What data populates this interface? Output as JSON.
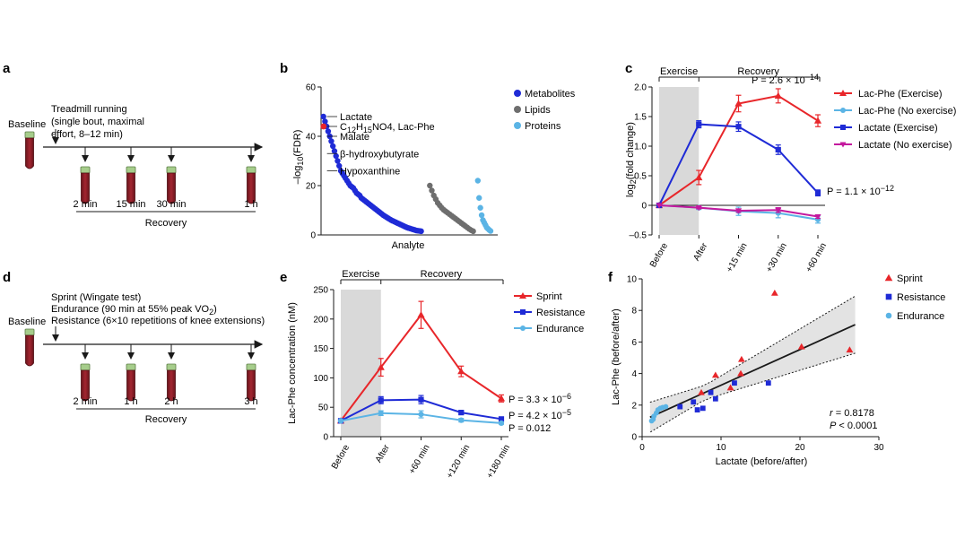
{
  "colors": {
    "red": "#e8262a",
    "blue": "#1f2bd6",
    "light_blue": "#5bb4e5",
    "magenta": "#c4199e",
    "gray": "#6e6e6e",
    "light_gray": "#d9d9d9",
    "tube_red": "#8c1d24",
    "cap_green": "#a6cd8b"
  },
  "panels": {
    "a": {
      "label": "a",
      "baseline": "Baseline",
      "protocol_lines": [
        "Treadmill running",
        "(single bout, maximal",
        "effort, 8–12 min)"
      ],
      "timepoints": [
        "2 min",
        "15 min",
        "30 min",
        "1 h"
      ],
      "phase": "Recovery"
    },
    "b": {
      "label": "b"
    },
    "c": {
      "label": "c"
    },
    "d": {
      "label": "d",
      "baseline": "Baseline",
      "protocol_lines": [
        {
          "pre": "Sprint (Wingate test)",
          "sub": "",
          "post": ""
        },
        {
          "pre": "Endurance (90 min at 55% peak VO",
          "sub": "2",
          "post": ")"
        },
        {
          "pre": "Resistance (6×10 repetitions of knee extensions)",
          "sub": "",
          "post": ""
        }
      ],
      "timepoints": [
        "2 min",
        "1 h",
        "2 h",
        "3 h"
      ],
      "phase": "Recovery"
    },
    "e": {
      "label": "e"
    },
    "f": {
      "label": "f"
    }
  },
  "chart_data": [
    {
      "id": "b",
      "type": "scatter",
      "title": "",
      "xlabel": "Analyte",
      "ylabel_parts": {
        "pre": "–log",
        "sub": "10",
        "post": "(FDR)"
      },
      "ylim": [
        0,
        60
      ],
      "yticks": [
        0,
        20,
        40,
        60
      ],
      "series": [
        {
          "name": "Metabolites",
          "color_key": "blue",
          "x_start": 1,
          "x_end": 170,
          "ranked_values": [
            48,
            46,
            44,
            42,
            40,
            38,
            36,
            34,
            32,
            30,
            28,
            26,
            25,
            24,
            23,
            22,
            21,
            20,
            19.5,
            19,
            18,
            17,
            16.5,
            16,
            15,
            14.5,
            14,
            13.5,
            13,
            12.5,
            12,
            11.5,
            11,
            10.5,
            10,
            9.5,
            9,
            8.5,
            8,
            7.6,
            7.2,
            6.8,
            6.4,
            6,
            5.7,
            5.4,
            5.1,
            4.8,
            4.5,
            4.2,
            3.9,
            3.6,
            3.3,
            3,
            2.8,
            2.6,
            2.4,
            2.2,
            2,
            1.8,
            1.7,
            1.6,
            1.5
          ]
        },
        {
          "name": "Lipids",
          "color_key": "gray",
          "x_start": 185,
          "x_end": 260,
          "ranked_values": [
            20,
            18,
            16,
            14.5,
            13,
            12,
            11,
            10.2,
            9.6,
            9,
            8.4,
            7.8,
            7.2,
            6.6,
            6,
            5.4,
            4.8,
            4.2,
            3.6,
            3,
            2.4,
            1.9,
            1.5
          ]
        },
        {
          "name": "Proteins",
          "color_key": "light_blue",
          "x_start": 268,
          "x_end": 290,
          "ranked_values": [
            22,
            15,
            11,
            8,
            6,
            5,
            4,
            3,
            2.5,
            2,
            1.6
          ]
        }
      ],
      "annotations": [
        {
          "label_parts": {
            "pre": "Lactate",
            "s1": "",
            "mid": "",
            "s2": "",
            "post": ""
          },
          "value": 48
        },
        {
          "label_parts": {
            "pre": "C",
            "s1": "12",
            "mid": "H",
            "s2": "15",
            "post": "NO4, Lac-Phe"
          },
          "value": 44
        },
        {
          "label_parts": {
            "pre": "Malate",
            "s1": "",
            "mid": "",
            "s2": "",
            "post": ""
          },
          "value": 40
        },
        {
          "label_parts": {
            "pre": "β-hydroxybutyrate",
            "s1": "",
            "mid": "",
            "s2": "",
            "post": ""
          },
          "value": 33
        },
        {
          "label_parts": {
            "pre": "Hypoxanthine",
            "s1": "",
            "mid": "",
            "s2": "",
            "post": ""
          },
          "value": 26
        }
      ],
      "legend": [
        "Metabolites",
        "Lipids",
        "Proteins"
      ],
      "legend_position": "top-right"
    },
    {
      "id": "c",
      "type": "line",
      "xlabel": "",
      "ylabel_parts": {
        "pre": "log",
        "sub": "2",
        "post": "(fold change)"
      },
      "categories": [
        "Before",
        "After",
        "+15 min",
        "+30 min",
        "+60 min"
      ],
      "ylim": [
        -0.5,
        2.0
      ],
      "yticks": [
        -0.5,
        0,
        0.5,
        1.0,
        1.5,
        2.0
      ],
      "ytick_labels": [
        "–0.5",
        "0",
        "0.5",
        "1.0",
        "1.5",
        "2.0"
      ],
      "shaded_region": {
        "from": "Before",
        "to": "After"
      },
      "phase_labels": [
        "Exercise",
        "Recovery"
      ],
      "series": [
        {
          "name": "Lac-Phe (Exercise)",
          "color_key": "red",
          "marker": "triangle",
          "values": [
            0,
            0.47,
            1.72,
            1.85,
            1.43
          ],
          "errors": [
            0,
            0.12,
            0.14,
            0.12,
            0.1
          ]
        },
        {
          "name": "Lac-Phe (No exercise)",
          "color_key": "light_blue",
          "marker": "circle",
          "values": [
            0,
            -0.04,
            -0.1,
            -0.13,
            -0.24
          ],
          "errors": [
            0,
            0.03,
            0.07,
            0.08,
            0.06
          ]
        },
        {
          "name": "Lactate (Exercise)",
          "color_key": "blue",
          "marker": "square",
          "values": [
            0,
            1.37,
            1.33,
            0.94,
            0.21
          ],
          "errors": [
            0,
            0.06,
            0.08,
            0.08,
            0.05
          ]
        },
        {
          "name": "Lactate (No exercise)",
          "color_key": "magenta",
          "marker": "triangle-down",
          "values": [
            0,
            -0.04,
            -0.09,
            -0.08,
            -0.19
          ],
          "errors": [
            0,
            0.02,
            0.03,
            0.04,
            0.03
          ]
        }
      ],
      "p_values": [
        {
          "pre": "P = 2.6 × 10",
          "sup": "−14"
        },
        {
          "pre": "P = 1.1 × 10",
          "sup": "−12"
        }
      ],
      "legend_position": "right"
    },
    {
      "id": "e",
      "type": "line",
      "xlabel": "",
      "ylabel": "Lac-Phe concentration (nM)",
      "categories": [
        "Before",
        "After",
        "+60 min",
        "+120 min",
        "+180 min"
      ],
      "ylim": [
        0,
        250
      ],
      "yticks": [
        0,
        50,
        100,
        150,
        200,
        250
      ],
      "shaded_region": {
        "from": "Before",
        "to": "After"
      },
      "phase_labels": [
        "Exercise",
        "Recovery"
      ],
      "series": [
        {
          "name": "Sprint",
          "color_key": "red",
          "marker": "triangle",
          "values": [
            27,
            118,
            207,
            111,
            65
          ],
          "errors": [
            0,
            15,
            23,
            9,
            6
          ]
        },
        {
          "name": "Resistance",
          "color_key": "blue",
          "marker": "square",
          "values": [
            27,
            62,
            63,
            41,
            30
          ],
          "errors": [
            0,
            6,
            7,
            3,
            3
          ]
        },
        {
          "name": "Endurance",
          "color_key": "light_blue",
          "marker": "circle",
          "values": [
            27,
            40,
            38,
            28,
            23
          ],
          "errors": [
            0,
            4,
            6,
            3,
            2
          ]
        }
      ],
      "p_values": [
        {
          "pre": "P = 3.3 × 10",
          "sup": "−6"
        },
        {
          "pre": "P = 4.2 × 10",
          "sup": "−5"
        },
        {
          "pre": "P = 0.012",
          "sup": ""
        }
      ],
      "legend_position": "top-right"
    },
    {
      "id": "f",
      "type": "scatter",
      "xlabel": "Lactate (before/after)",
      "ylabel": "Lac-Phe (before/after)",
      "xlim": [
        0,
        30
      ],
      "ylim": [
        0,
        10
      ],
      "xticks": [
        0,
        10,
        20,
        30
      ],
      "yticks": [
        0,
        2,
        4,
        6,
        8,
        10
      ],
      "series": [
        {
          "name": "Sprint",
          "color_key": "red",
          "marker": "triangle",
          "points": [
            [
              7.5,
              2.8
            ],
            [
              9.3,
              3.9
            ],
            [
              11.2,
              3.1
            ],
            [
              12.5,
              4.0
            ],
            [
              12.6,
              4.9
            ],
            [
              16.8,
              9.1
            ],
            [
              20.2,
              5.7
            ],
            [
              26.3,
              5.5
            ]
          ]
        },
        {
          "name": "Resistance",
          "color_key": "blue",
          "marker": "square",
          "points": [
            [
              4.8,
              1.9
            ],
            [
              6.5,
              2.2
            ],
            [
              7.0,
              1.7
            ],
            [
              7.7,
              1.8
            ],
            [
              8.7,
              2.8
            ],
            [
              9.3,
              2.4
            ],
            [
              11.7,
              3.4
            ],
            [
              16.0,
              3.4
            ]
          ]
        },
        {
          "name": "Endurance",
          "color_key": "light_blue",
          "marker": "circle",
          "points": [
            [
              1.2,
              1.0
            ],
            [
              1.5,
              1.3
            ],
            [
              1.8,
              1.5
            ],
            [
              2.0,
              1.7
            ],
            [
              2.3,
              1.8
            ],
            [
              2.6,
              1.85
            ],
            [
              3.0,
              1.9
            ],
            [
              1.4,
              1.1
            ]
          ]
        }
      ],
      "fit": {
        "x0": 1.0,
        "y0": 1.23,
        "x1": 27.0,
        "y1": 7.1
      },
      "stats": [
        {
          "pre": "r",
          "post": " = 0.8178"
        },
        {
          "pre": "P",
          "post": " < 0.0001"
        }
      ],
      "legend_position": "top-right"
    }
  ]
}
